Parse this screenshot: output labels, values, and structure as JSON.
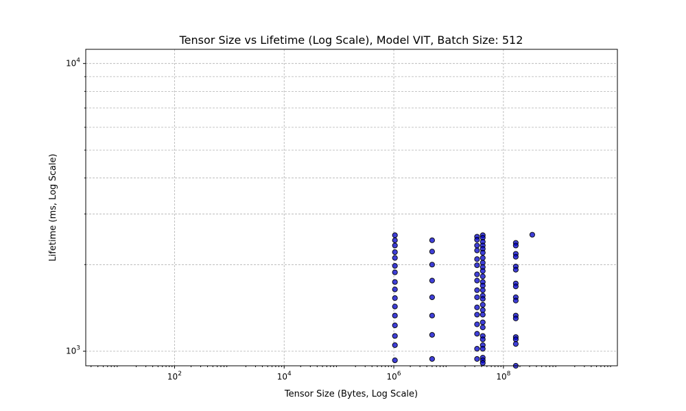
{
  "chart_data": {
    "type": "scatter",
    "title": "Tensor Size vs Lifetime (Log Scale), Model VIT, Batch Size: 512",
    "xlabel": "Tensor Size (Bytes, Log Scale)",
    "ylabel": "Lifetime (ms, Log Scale)",
    "xscale": "log",
    "yscale": "log",
    "xlim": [
      2.4,
      12000000000
    ],
    "ylim": [
      890,
      11200
    ],
    "x_ticks": [
      {
        "value": 100,
        "base": "10",
        "exp": "2"
      },
      {
        "value": 10000,
        "base": "10",
        "exp": "4"
      },
      {
        "value": 1000000,
        "base": "10",
        "exp": "6"
      },
      {
        "value": 100000000,
        "base": "10",
        "exp": "8"
      }
    ],
    "y_ticks": [
      {
        "value": 1000,
        "base": "10",
        "exp": "3"
      },
      {
        "value": 10000,
        "base": "10",
        "exp": "4"
      }
    ],
    "y_minor_grid": [
      2000,
      3000,
      4000,
      5000,
      6000,
      7000,
      8000,
      9000
    ],
    "grid": true,
    "marker_color": "#0000cc",
    "marker_edge_color": "#000000",
    "marker_alpha": 0.75,
    "series": [
      {
        "values": [
          {
            "x": 1048576,
            "y": 2530
          },
          {
            "x": 1048576,
            "y": 2430
          },
          {
            "x": 1048576,
            "y": 2330
          },
          {
            "x": 1048576,
            "y": 2210
          },
          {
            "x": 1048576,
            "y": 2110
          },
          {
            "x": 1048576,
            "y": 1980
          },
          {
            "x": 1048576,
            "y": 1880
          },
          {
            "x": 1048576,
            "y": 1740
          },
          {
            "x": 1048576,
            "y": 1640
          },
          {
            "x": 1048576,
            "y": 1530
          },
          {
            "x": 1048576,
            "y": 1430
          },
          {
            "x": 1048576,
            "y": 1330
          },
          {
            "x": 1048576,
            "y": 1230
          },
          {
            "x": 1048576,
            "y": 1130
          },
          {
            "x": 1048576,
            "y": 1050
          },
          {
            "x": 1048576,
            "y": 930
          },
          {
            "x": 5000000,
            "y": 2430
          },
          {
            "x": 5000000,
            "y": 2220
          },
          {
            "x": 5000000,
            "y": 2000
          },
          {
            "x": 5000000,
            "y": 1760
          },
          {
            "x": 5000000,
            "y": 1540
          },
          {
            "x": 5000000,
            "y": 1330
          },
          {
            "x": 5000000,
            "y": 1140
          },
          {
            "x": 5000000,
            "y": 940
          },
          {
            "x": 33000000,
            "y": 2500
          },
          {
            "x": 33000000,
            "y": 2440
          },
          {
            "x": 33000000,
            "y": 2330
          },
          {
            "x": 33000000,
            "y": 2240
          },
          {
            "x": 33000000,
            "y": 2090
          },
          {
            "x": 33000000,
            "y": 1990
          },
          {
            "x": 33000000,
            "y": 1850
          },
          {
            "x": 33000000,
            "y": 1760
          },
          {
            "x": 33000000,
            "y": 1630
          },
          {
            "x": 33000000,
            "y": 1540
          },
          {
            "x": 33000000,
            "y": 1420
          },
          {
            "x": 33000000,
            "y": 1340
          },
          {
            "x": 33000000,
            "y": 1240
          },
          {
            "x": 33000000,
            "y": 1150
          },
          {
            "x": 33000000,
            "y": 1020
          },
          {
            "x": 33000000,
            "y": 940
          },
          {
            "x": 42000000,
            "y": 2530
          },
          {
            "x": 42000000,
            "y": 2480
          },
          {
            "x": 42000000,
            "y": 2400
          },
          {
            "x": 42000000,
            "y": 2330
          },
          {
            "x": 42000000,
            "y": 2270
          },
          {
            "x": 42000000,
            "y": 2200
          },
          {
            "x": 42000000,
            "y": 2110
          },
          {
            "x": 42000000,
            "y": 2030
          },
          {
            "x": 42000000,
            "y": 1960
          },
          {
            "x": 42000000,
            "y": 1900
          },
          {
            "x": 42000000,
            "y": 1820
          },
          {
            "x": 42000000,
            "y": 1740
          },
          {
            "x": 42000000,
            "y": 1690
          },
          {
            "x": 42000000,
            "y": 1630
          },
          {
            "x": 42000000,
            "y": 1560
          },
          {
            "x": 42000000,
            "y": 1520
          },
          {
            "x": 42000000,
            "y": 1450
          },
          {
            "x": 42000000,
            "y": 1390
          },
          {
            "x": 42000000,
            "y": 1340
          },
          {
            "x": 42000000,
            "y": 1260
          },
          {
            "x": 42000000,
            "y": 1210
          },
          {
            "x": 42000000,
            "y": 1130
          },
          {
            "x": 42000000,
            "y": 1100
          },
          {
            "x": 42000000,
            "y": 1050
          },
          {
            "x": 42000000,
            "y": 1020
          },
          {
            "x": 42000000,
            "y": 950
          },
          {
            "x": 42000000,
            "y": 930
          },
          {
            "x": 42000000,
            "y": 910
          },
          {
            "x": 168000000,
            "y": 2380
          },
          {
            "x": 168000000,
            "y": 2330
          },
          {
            "x": 168000000,
            "y": 2180
          },
          {
            "x": 168000000,
            "y": 2130
          },
          {
            "x": 168000000,
            "y": 1970
          },
          {
            "x": 168000000,
            "y": 1920
          },
          {
            "x": 168000000,
            "y": 1720
          },
          {
            "x": 168000000,
            "y": 1680
          },
          {
            "x": 168000000,
            "y": 1540
          },
          {
            "x": 168000000,
            "y": 1500
          },
          {
            "x": 168000000,
            "y": 1330
          },
          {
            "x": 168000000,
            "y": 1300
          },
          {
            "x": 168000000,
            "y": 1120
          },
          {
            "x": 168000000,
            "y": 1100
          },
          {
            "x": 168000000,
            "y": 1060
          },
          {
            "x": 168000000,
            "y": 890
          },
          {
            "x": 336000000,
            "y": 2540
          }
        ]
      }
    ]
  }
}
